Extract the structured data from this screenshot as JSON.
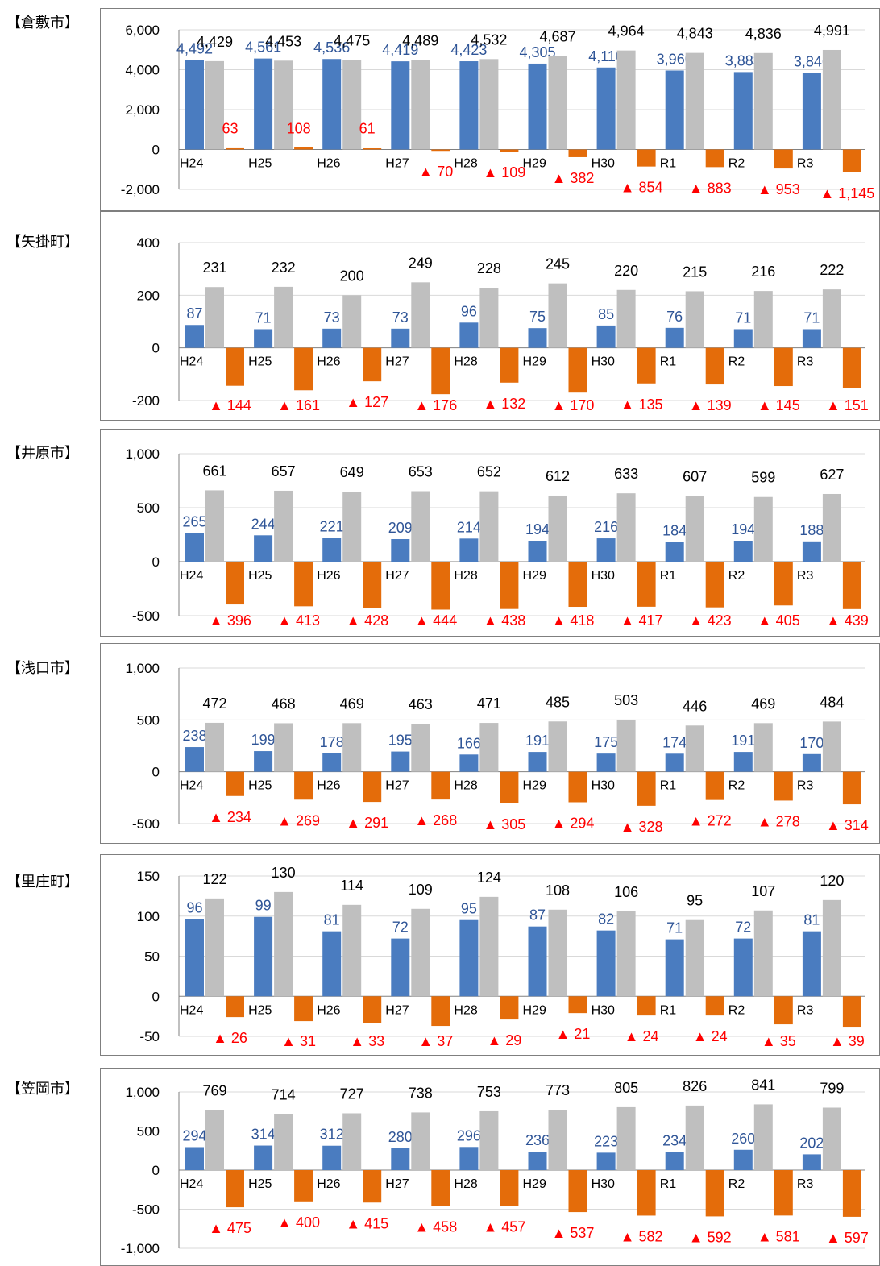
{
  "colors": {
    "series_a": "#4a7cc0",
    "series_b": "#bfbfbf",
    "series_c": "#e46c0a",
    "label_a": "#2f5597",
    "label_b": "#000000",
    "label_c": "#ff0000",
    "gridline": "#d9d9d9",
    "axis": "#808080"
  },
  "chart_data": [
    {
      "type": "bar",
      "title": "【倉敷市】",
      "categories": [
        "H24",
        "H25",
        "H26",
        "H27",
        "H28",
        "H29",
        "H30",
        "R1",
        "R2",
        "R3"
      ],
      "ylim": [
        -2000,
        6000
      ],
      "yticks": [
        6000,
        4000,
        2000,
        0,
        -2000
      ],
      "ytick_labels": [
        "6,000",
        "4,000",
        "2,000",
        "0",
        "-2,000"
      ],
      "series": [
        {
          "values": [
            4492,
            4561,
            4536,
            4419,
            4423,
            4305,
            4110,
            3960,
            3883,
            3846
          ],
          "labels": [
            "4,492",
            "4,561",
            "4,536",
            "4,419",
            "4,423",
            "4,305",
            "4,110",
            "3,960",
            "3,883",
            "3,846"
          ]
        },
        {
          "values": [
            4429,
            4453,
            4475,
            4489,
            4532,
            4687,
            4964,
            4843,
            4836,
            4991
          ],
          "labels": [
            "4,429",
            "4,453",
            "4,475",
            "4,489",
            "4,532",
            "4,687",
            "4,964",
            "4,843",
            "4,836",
            "4,991"
          ]
        },
        {
          "values": [
            63,
            108,
            61,
            -70,
            -109,
            -382,
            -854,
            -883,
            -953,
            -1145
          ],
          "labels": [
            "63",
            "108",
            "61",
            "▲ 70",
            "▲ 109",
            "▲ 382",
            "▲ 854",
            "▲ 883",
            "▲ 953",
            "▲ 1,145"
          ]
        }
      ]
    },
    {
      "type": "bar",
      "title": "【矢掛町】",
      "categories": [
        "H24",
        "H25",
        "H26",
        "H27",
        "H28",
        "H29",
        "H30",
        "R1",
        "R2",
        "R3"
      ],
      "ylim": [
        -200,
        400
      ],
      "yticks": [
        400,
        200,
        0,
        -200
      ],
      "ytick_labels": [
        "400",
        "200",
        "0",
        "-200"
      ],
      "series": [
        {
          "values": [
            87,
            71,
            73,
            73,
            96,
            75,
            85,
            76,
            71,
            71
          ],
          "labels": [
            "87",
            "71",
            "73",
            "73",
            "96",
            "75",
            "85",
            "76",
            "71",
            "71"
          ]
        },
        {
          "values": [
            231,
            232,
            200,
            249,
            228,
            245,
            220,
            215,
            216,
            222
          ],
          "labels": [
            "231",
            "232",
            "200",
            "249",
            "228",
            "245",
            "220",
            "215",
            "216",
            "222"
          ]
        },
        {
          "values": [
            -144,
            -161,
            -127,
            -176,
            -132,
            -170,
            -135,
            -139,
            -145,
            -151
          ],
          "labels": [
            "▲ 144",
            "▲ 161",
            "▲ 127",
            "▲ 176",
            "▲ 132",
            "▲ 170",
            "▲ 135",
            "▲ 139",
            "▲ 145",
            "▲ 151"
          ]
        }
      ]
    },
    {
      "type": "bar",
      "title": "【井原市】",
      "categories": [
        "H24",
        "H25",
        "H26",
        "H27",
        "H28",
        "H29",
        "H30",
        "R1",
        "R2",
        "R3"
      ],
      "ylim": [
        -500,
        1000
      ],
      "yticks": [
        1000,
        500,
        0,
        -500
      ],
      "ytick_labels": [
        "1,000",
        "500",
        "0",
        "-500"
      ],
      "series": [
        {
          "values": [
            265,
            244,
            221,
            209,
            214,
            194,
            216,
            184,
            194,
            188
          ],
          "labels": [
            "265",
            "244",
            "221",
            "209",
            "214",
            "194",
            "216",
            "184",
            "194",
            "188"
          ]
        },
        {
          "values": [
            661,
            657,
            649,
            653,
            652,
            612,
            633,
            607,
            599,
            627
          ],
          "labels": [
            "661",
            "657",
            "649",
            "653",
            "652",
            "612",
            "633",
            "607",
            "599",
            "627"
          ]
        },
        {
          "values": [
            -396,
            -413,
            -428,
            -444,
            -438,
            -418,
            -417,
            -423,
            -405,
            -439
          ],
          "labels": [
            "▲ 396",
            "▲ 413",
            "▲ 428",
            "▲ 444",
            "▲ 438",
            "▲ 418",
            "▲ 417",
            "▲ 423",
            "▲ 405",
            "▲ 439"
          ]
        }
      ]
    },
    {
      "type": "bar",
      "title": "【浅口市】",
      "categories": [
        "H24",
        "H25",
        "H26",
        "H27",
        "H28",
        "H29",
        "H30",
        "R1",
        "R2",
        "R3"
      ],
      "ylim": [
        -500,
        1000
      ],
      "yticks": [
        1000,
        500,
        0,
        -500
      ],
      "ytick_labels": [
        "1,000",
        "500",
        "0",
        "-500"
      ],
      "series": [
        {
          "values": [
            238,
            199,
            178,
            195,
            166,
            191,
            175,
            174,
            191,
            170
          ],
          "labels": [
            "238",
            "199",
            "178",
            "195",
            "166",
            "191",
            "175",
            "174",
            "191",
            "170"
          ]
        },
        {
          "values": [
            472,
            468,
            469,
            463,
            471,
            485,
            503,
            446,
            469,
            484
          ],
          "labels": [
            "472",
            "468",
            "469",
            "463",
            "471",
            "485",
            "503",
            "446",
            "469",
            "484"
          ]
        },
        {
          "values": [
            -234,
            -269,
            -291,
            -268,
            -305,
            -294,
            -328,
            -272,
            -278,
            -314
          ],
          "labels": [
            "▲ 234",
            "▲ 269",
            "▲ 291",
            "▲ 268",
            "▲ 305",
            "▲ 294",
            "▲ 328",
            "▲ 272",
            "▲ 278",
            "▲ 314"
          ]
        }
      ]
    },
    {
      "type": "bar",
      "title": "【里庄町】",
      "categories": [
        "H24",
        "H25",
        "H26",
        "H27",
        "H28",
        "H29",
        "H30",
        "R1",
        "R2",
        "R3"
      ],
      "ylim": [
        -50,
        150
      ],
      "yticks": [
        150,
        100,
        50,
        0,
        -50
      ],
      "ytick_labels": [
        "150",
        "100",
        "50",
        "0",
        "-50"
      ],
      "series": [
        {
          "values": [
            96,
            99,
            81,
            72,
            95,
            87,
            82,
            71,
            72,
            81
          ],
          "labels": [
            "96",
            "99",
            "81",
            "72",
            "95",
            "87",
            "82",
            "71",
            "72",
            "81"
          ]
        },
        {
          "values": [
            122,
            130,
            114,
            109,
            124,
            108,
            106,
            95,
            107,
            120
          ],
          "labels": [
            "122",
            "130",
            "114",
            "109",
            "124",
            "108",
            "106",
            "95",
            "107",
            "120"
          ]
        },
        {
          "values": [
            -26,
            -31,
            -33,
            -37,
            -29,
            -21,
            -24,
            -24,
            -35,
            -39
          ],
          "labels": [
            "▲ 26",
            "▲ 31",
            "▲ 33",
            "▲ 37",
            "▲ 29",
            "▲ 21",
            "▲ 24",
            "▲ 24",
            "▲ 35",
            "▲ 39"
          ]
        }
      ]
    },
    {
      "type": "bar",
      "title": "【笠岡市】",
      "categories": [
        "H24",
        "H25",
        "H26",
        "H27",
        "H28",
        "H29",
        "H30",
        "R1",
        "R2",
        "R3"
      ],
      "ylim": [
        -1000,
        1000
      ],
      "yticks": [
        1000,
        500,
        0,
        -500,
        -1000
      ],
      "ytick_labels": [
        "1,000",
        "500",
        "0",
        "-500",
        "-1,000"
      ],
      "series": [
        {
          "values": [
            294,
            314,
            312,
            280,
            296,
            236,
            223,
            234,
            260,
            202
          ],
          "labels": [
            "294",
            "314",
            "312",
            "280",
            "296",
            "236",
            "223",
            "234",
            "260",
            "202"
          ]
        },
        {
          "values": [
            769,
            714,
            727,
            738,
            753,
            773,
            805,
            826,
            841,
            799
          ],
          "labels": [
            "769",
            "714",
            "727",
            "738",
            "753",
            "773",
            "805",
            "826",
            "841",
            "799"
          ]
        },
        {
          "values": [
            -475,
            -400,
            -415,
            -458,
            -457,
            -537,
            -582,
            -592,
            -581,
            -597
          ],
          "labels": [
            "▲ 475",
            "▲ 400",
            "▲ 415",
            "▲ 458",
            "▲ 457",
            "▲ 537",
            "▲ 582",
            "▲ 592",
            "▲ 581",
            "▲ 597"
          ]
        }
      ]
    }
  ]
}
